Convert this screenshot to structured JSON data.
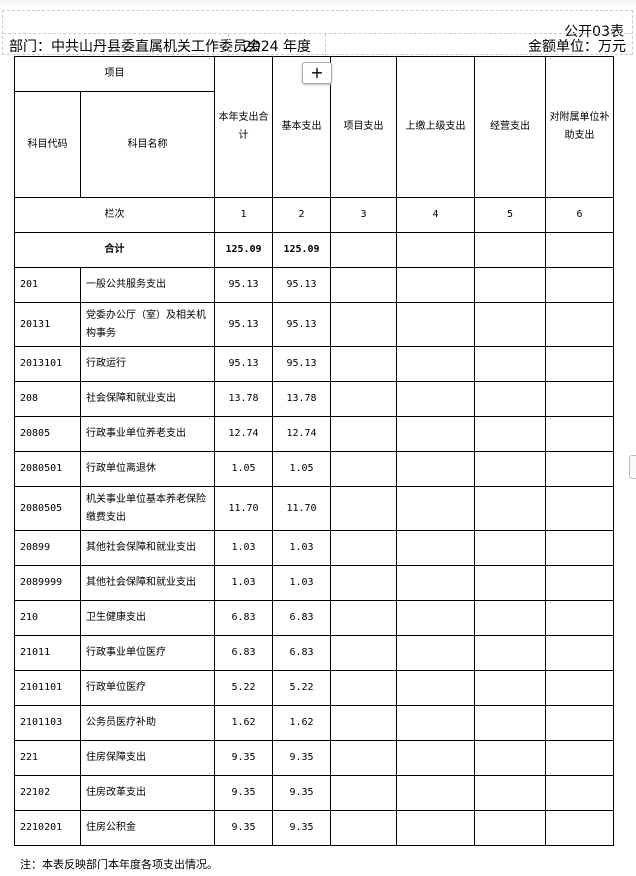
{
  "title_tag": "公开03表",
  "department": "部门：中共山丹县委直属机关工作委员会",
  "year": "2024 年度",
  "unit": "金额单位：万元",
  "add_button": "+",
  "headers": {
    "item": "项目",
    "code": "科目代码",
    "name": "科目名称",
    "c1": "本年支出合计",
    "c2": "基本支出",
    "c3": "项目支出",
    "c4": "上缴上级支出",
    "c5": "经营支出",
    "c6": "对附属单位补助支出"
  },
  "column_index": {
    "label": "栏次",
    "values": [
      "1",
      "2",
      "3",
      "4",
      "5",
      "6"
    ]
  },
  "total": {
    "label": "合计",
    "c1": "125.09",
    "c2": "125.09"
  },
  "rows": [
    {
      "code": "201",
      "name": "一般公共服务支出",
      "c1": "95.13",
      "c2": "95.13"
    },
    {
      "code": "20131",
      "name": "党委办公厅（室）及相关机构事务",
      "c1": "95.13",
      "c2": "95.13"
    },
    {
      "code": "2013101",
      "name": "行政运行",
      "c1": "95.13",
      "c2": "95.13"
    },
    {
      "code": "208",
      "name": "社会保障和就业支出",
      "c1": "13.78",
      "c2": "13.78"
    },
    {
      "code": "20805",
      "name": "行政事业单位养老支出",
      "c1": "12.74",
      "c2": "12.74"
    },
    {
      "code": "2080501",
      "name": "行政单位离退休",
      "c1": "1.05",
      "c2": "1.05"
    },
    {
      "code": "2080505",
      "name": "机关事业单位基本养老保险缴费支出",
      "c1": "11.70",
      "c2": "11.70"
    },
    {
      "code": "20899",
      "name": "其他社会保障和就业支出",
      "c1": "1.03",
      "c2": "1.03"
    },
    {
      "code": "2089999",
      "name": "其他社会保障和就业支出",
      "c1": "1.03",
      "c2": "1.03"
    },
    {
      "code": "210",
      "name": "卫生健康支出",
      "c1": "6.83",
      "c2": "6.83"
    },
    {
      "code": "21011",
      "name": "行政事业单位医疗",
      "c1": "6.83",
      "c2": "6.83"
    },
    {
      "code": "2101101",
      "name": "行政单位医疗",
      "c1": "5.22",
      "c2": "5.22"
    },
    {
      "code": "2101103",
      "name": "公务员医疗补助",
      "c1": "1.62",
      "c2": "1.62"
    },
    {
      "code": "221",
      "name": "住房保障支出",
      "c1": "9.35",
      "c2": "9.35"
    },
    {
      "code": "22102",
      "name": "住房改革支出",
      "c1": "9.35",
      "c2": "9.35"
    },
    {
      "code": "2210201",
      "name": "住房公积金",
      "c1": "9.35",
      "c2": "9.35"
    }
  ],
  "note": "注：本表反映部门本年度各项支出情况。"
}
